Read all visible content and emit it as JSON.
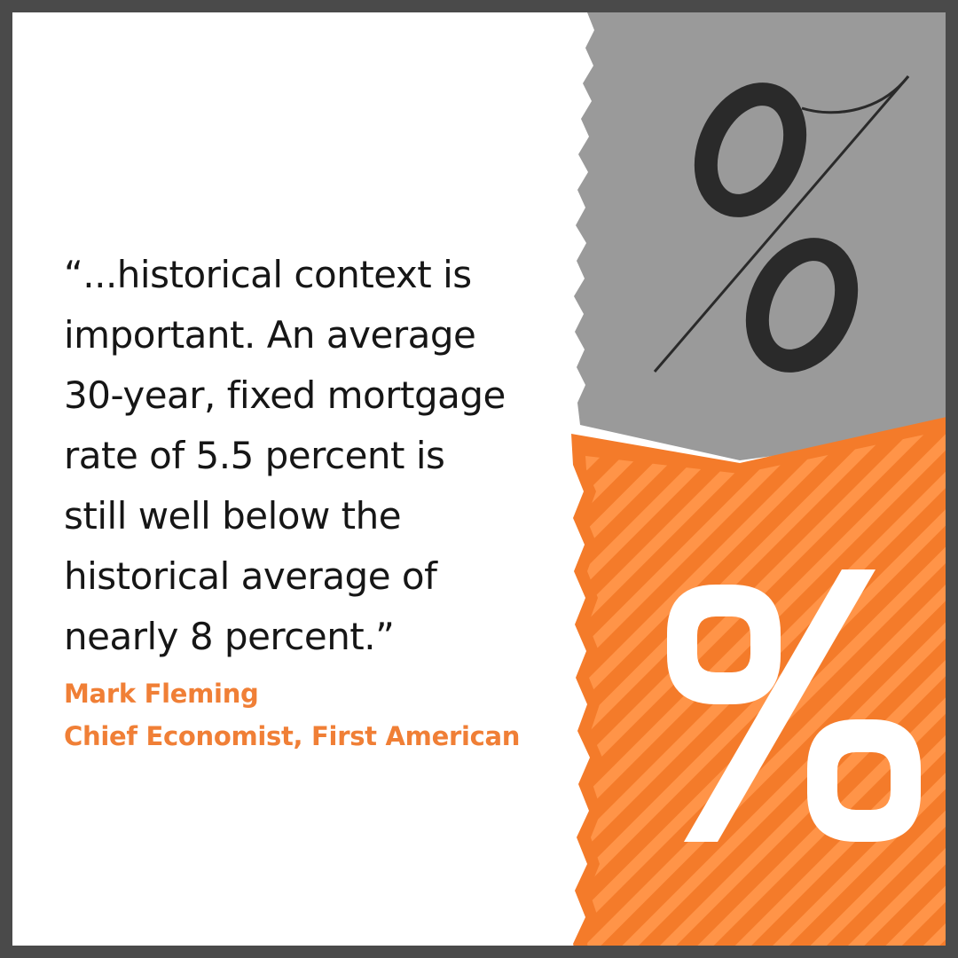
{
  "quote": {
    "lines": [
      "“...historical context is",
      "important. An average",
      "30-year, fixed mortgage",
      "rate of 5.5 percent is",
      "still well below the",
      "historical average of",
      "nearly 8 percent.”"
    ]
  },
  "attribution": {
    "name": "Mark Fleming",
    "title": "Chief Economist, First American"
  },
  "colors": {
    "frame": "#4a4a4a",
    "gray_panel": "#9a9a9a",
    "orange_panel": "#f47b2a",
    "accent_text": "#f07f36"
  },
  "icons": {
    "top": "percent-sign-serif-icon",
    "bottom": "percent-sign-bold-icon"
  }
}
